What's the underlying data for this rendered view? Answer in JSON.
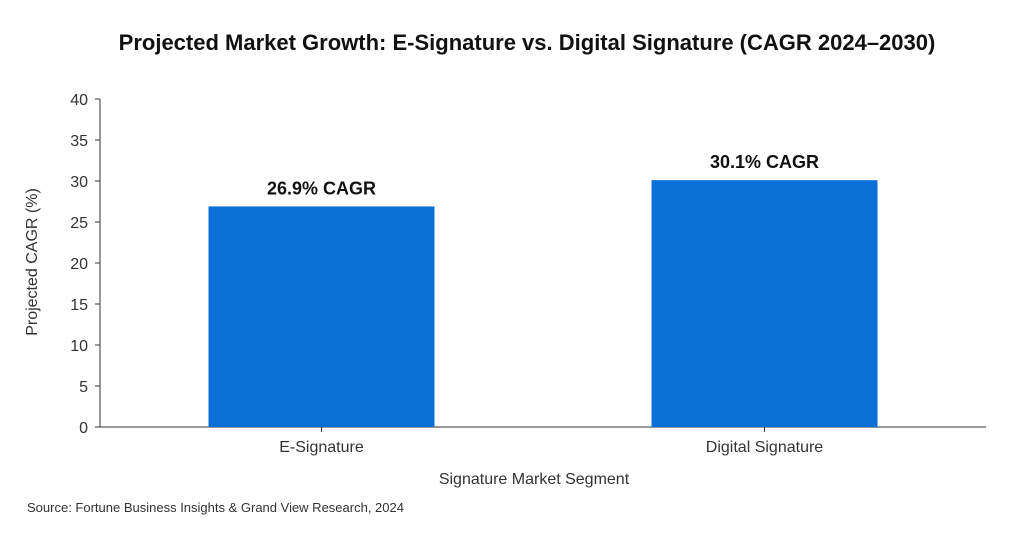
{
  "chart_data": {
    "type": "bar",
    "title": "Projected Market Growth: E-Signature vs. Digital Signature (CAGR 2024–2030)",
    "xlabel": "Signature Market Segment",
    "ylabel": "Projected CAGR (%)",
    "categories": [
      "E-Signature",
      "Digital Signature"
    ],
    "values": [
      26.9,
      30.1
    ],
    "data_labels": [
      "26.9% CAGR",
      "30.1% CAGR"
    ],
    "ylim": [
      0,
      40
    ],
    "yticks": [
      0,
      5,
      10,
      15,
      20,
      25,
      30,
      35,
      40
    ],
    "bar_color": "#0a6fd6",
    "grid": false,
    "source": "Source: Fortune Business Insights & Grand View Research, 2024"
  }
}
